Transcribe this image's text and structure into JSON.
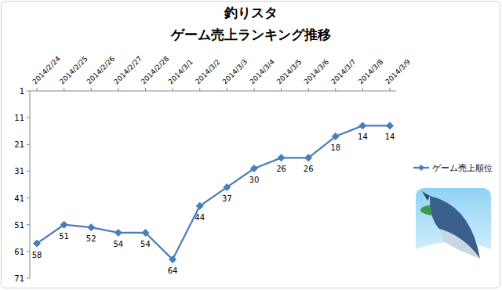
{
  "chart_data": {
    "type": "line",
    "title": "釣りスタ",
    "subtitle": "ゲーム売上ランキング推移",
    "categories": [
      "2014/2/24",
      "2014/2/25",
      "2014/2/26",
      "2014/2/27",
      "2014/2/28",
      "2014/3/1",
      "2014/3/2",
      "2014/3/3",
      "2014/3/4",
      "2014/3/5",
      "2014/3/6",
      "2014/3/7",
      "2014/3/8",
      "2014/3/9"
    ],
    "series": [
      {
        "name": "ゲーム売上順位",
        "color": "#4a7ebb",
        "marker": "diamond",
        "line_style": "solid",
        "values": [
          58,
          51,
          52,
          54,
          54,
          64,
          44,
          37,
          30,
          26,
          26,
          18,
          14,
          14
        ]
      }
    ],
    "ylim": [
      71,
      1
    ],
    "yticks": [
      1,
      11,
      21,
      31,
      41,
      51,
      61,
      71
    ],
    "grid": false,
    "legend": "right",
    "data_labels": true
  }
}
